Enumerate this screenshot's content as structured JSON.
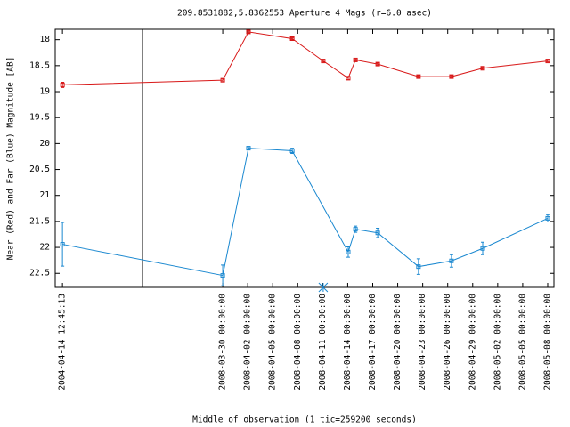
{
  "chart_data": {
    "type": "line",
    "title": "209.8531882,5.8362553   Aperture 4 Mags (r=6.0 asec)",
    "y_label": "Near (Red) and Far (Blue) Magnitude [AB]",
    "x_label": "Middle of observation (1 tic=259200 seconds)",
    "y_inverted": true,
    "xlim": [
      -6.7,
      13.25
    ],
    "ylim": [
      17.8,
      22.77
    ],
    "yticks": [
      18,
      18.5,
      19,
      19.5,
      20,
      20.5,
      21,
      21.5,
      22,
      22.5
    ],
    "xticks": [
      {
        "value": -6.41,
        "label": "2004-04-14 12:45:13"
      },
      {
        "value": 0,
        "label": "2008-03-30 00:00:00"
      },
      {
        "value": 1,
        "label": "2008-04-02 00:00:00"
      },
      {
        "value": 2,
        "label": "2008-04-05 00:00:00"
      },
      {
        "value": 3,
        "label": "2008-04-08 00:00:00"
      },
      {
        "value": 4,
        "label": "2008-04-11 00:00:00"
      },
      {
        "value": 5,
        "label": "2008-04-14 00:00:00"
      },
      {
        "value": 6,
        "label": "2008-04-17 00:00:00"
      },
      {
        "value": 7,
        "label": "2008-04-20 00:00:00"
      },
      {
        "value": 8,
        "label": "2008-04-23 00:00:00"
      },
      {
        "value": 9,
        "label": "2008-04-26 00:00:00"
      },
      {
        "value": 10,
        "label": "2008-04-29 00:00:00"
      },
      {
        "value": 11,
        "label": "2008-05-02 00:00:00"
      },
      {
        "value": 12,
        "label": "2008-05-05 00:00:00"
      },
      {
        "value": 13,
        "label": "2008-05-08 00:00:00"
      }
    ],
    "series": [
      {
        "color": "#d81818",
        "x": [
          -6.41,
          0,
          1.03,
          2.78,
          4.02,
          5.02,
          5.31,
          6.2,
          7.83,
          9.15,
          10.4,
          13.0
        ],
        "values": [
          18.87,
          18.78,
          17.85,
          17.98,
          18.41,
          18.74,
          18.39,
          18.47,
          18.71,
          18.71,
          18.55,
          18.41
        ],
        "errors": [
          0.05,
          0.03,
          0.02,
          0.02,
          0.02,
          0.03,
          0.02,
          0.02,
          0.02,
          0.02,
          0.02,
          0.02
        ]
      },
      {
        "color": "#1a88d0",
        "x": [
          -6.41,
          0,
          1.03,
          2.78,
          5.02,
          5.31,
          6.2,
          7.83,
          9.15,
          10.4,
          13.0
        ],
        "values": [
          21.94,
          22.54,
          20.09,
          20.14,
          22.09,
          21.65,
          21.72,
          22.37,
          22.26,
          22.02,
          21.44
        ],
        "errors": [
          0.42,
          0.2,
          0.03,
          0.05,
          0.1,
          0.06,
          0.09,
          0.15,
          0.12,
          0.12,
          0.07
        ]
      },
      {
        "color": "#1a88d0",
        "style": "star",
        "x": [
          4.02
        ],
        "values": [
          22.77
        ]
      }
    ]
  }
}
